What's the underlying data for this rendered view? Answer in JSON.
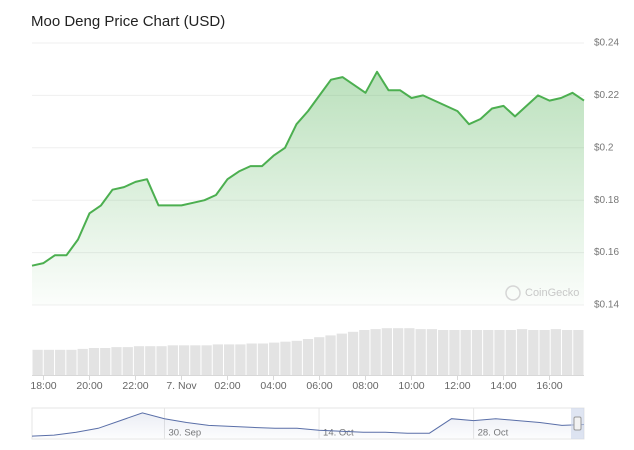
{
  "chart_data": {
    "type": "line",
    "title": "Moo Deng Price Chart (USD)",
    "categories": [
      null,
      "18:00",
      null,
      null,
      null,
      "20:00",
      null,
      null,
      null,
      "22:00",
      null,
      null,
      null,
      "7. Nov",
      null,
      null,
      null,
      "02:00",
      null,
      null,
      null,
      "04:00",
      null,
      null,
      null,
      "06:00",
      null,
      null,
      null,
      "08:00",
      null,
      null,
      null,
      "10:00",
      null,
      null,
      null,
      "12:00",
      null,
      null,
      null,
      "14:00",
      null,
      null,
      null,
      "16:00",
      null,
      null,
      null
    ],
    "values": [
      0.155,
      0.156,
      0.159,
      0.159,
      0.165,
      0.175,
      0.178,
      0.184,
      0.185,
      0.187,
      0.188,
      0.178,
      0.178,
      0.178,
      0.179,
      0.18,
      0.182,
      0.188,
      0.191,
      0.193,
      0.193,
      0.197,
      0.2,
      0.209,
      0.214,
      0.22,
      0.226,
      0.227,
      0.224,
      0.221,
      0.229,
      0.222,
      0.222,
      0.219,
      0.22,
      0.218,
      0.216,
      0.214,
      0.209,
      0.211,
      0.215,
      0.216,
      0.212,
      0.216,
      0.22,
      0.218,
      0.219,
      0.221,
      0.218
    ],
    "color": "#4caf50",
    "ylim": [
      0.14,
      0.24
    ],
    "yticks": [
      {
        "value": 0.14,
        "label": "$0.14"
      },
      {
        "value": 0.16,
        "label": "$0.16"
      },
      {
        "value": 0.18,
        "label": "$0.18"
      },
      {
        "value": 0.2,
        "label": "$0.2"
      },
      {
        "value": 0.22,
        "label": "$0.22"
      },
      {
        "value": 0.24,
        "label": "$0.24"
      }
    ],
    "grid": true,
    "watermark": "CoinGecko",
    "volume": [
      28,
      28,
      28,
      28,
      29,
      30,
      30,
      31,
      31,
      32,
      32,
      32,
      33,
      33,
      33,
      33,
      34,
      34,
      34,
      35,
      35,
      36,
      37,
      38,
      40,
      42,
      44,
      46,
      48,
      50,
      51,
      52,
      52,
      52,
      51,
      51,
      50,
      50,
      50,
      50,
      50,
      50,
      50,
      51,
      50,
      50,
      51,
      50,
      50
    ],
    "volume_color": "#e3e3e3",
    "volume_lim": [
      0,
      60
    ],
    "navigator": {
      "categories": [
        null,
        null,
        null,
        null,
        null,
        null,
        "30. Sep",
        null,
        null,
        null,
        null,
        null,
        null,
        "14. Oct",
        null,
        null,
        null,
        null,
        null,
        null,
        "28. Oct",
        null,
        null,
        null,
        null,
        null
      ],
      "values": [
        2,
        3,
        6,
        10,
        18,
        26,
        20,
        16,
        13,
        12,
        11,
        10,
        10,
        8,
        7,
        6,
        6,
        5,
        5,
        20,
        18,
        20,
        18,
        16,
        13,
        14
      ],
      "color": "#5a6fa8",
      "ylim": [
        0,
        30
      ]
    }
  }
}
